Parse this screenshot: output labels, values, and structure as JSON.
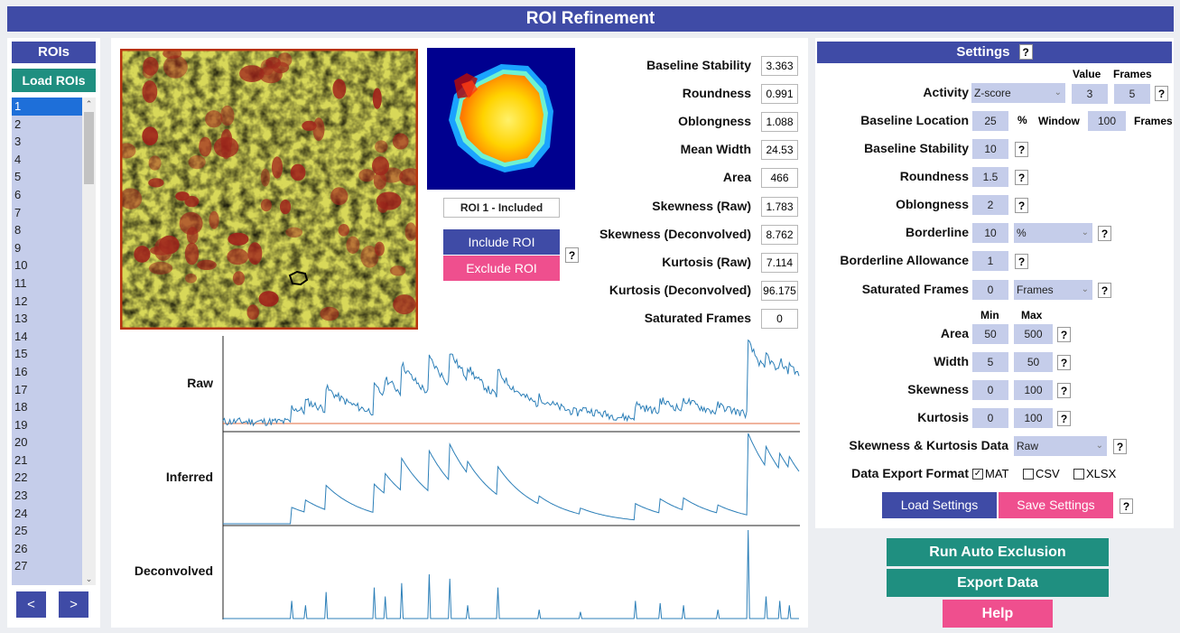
{
  "app": {
    "title": "ROI Refinement"
  },
  "rois_panel": {
    "header": "ROIs",
    "load_button": "Load ROIs",
    "items": [
      "1",
      "2",
      "3",
      "4",
      "5",
      "6",
      "7",
      "8",
      "9",
      "10",
      "11",
      "12",
      "13",
      "14",
      "15",
      "16",
      "17",
      "18",
      "19",
      "20",
      "21",
      "22",
      "23",
      "24",
      "25",
      "26",
      "27"
    ],
    "selected_index": 0,
    "prev_button": "<",
    "next_button": ">"
  },
  "roi_view": {
    "status": "ROI 1 - Included",
    "include_button": "Include ROI",
    "exclude_button": "Exclude ROI",
    "help": "?"
  },
  "metrics": [
    {
      "label": "Baseline Stability",
      "value": "3.363"
    },
    {
      "label": "Roundness",
      "value": "0.991"
    },
    {
      "label": "Oblongness",
      "value": "1.088"
    },
    {
      "label": "Mean Width",
      "value": "24.53"
    },
    {
      "label": "Area",
      "value": "466"
    },
    {
      "label": "Skewness (Raw)",
      "value": "1.783"
    },
    {
      "label": "Skewness (Deconvolved)",
      "value": "8.762"
    },
    {
      "label": "Kurtosis (Raw)",
      "value": "7.114"
    },
    {
      "label": "Kurtosis (Deconvolved)",
      "value": "96.175"
    },
    {
      "label": "Saturated Frames",
      "value": "0"
    }
  ],
  "traces": {
    "raw": "Raw",
    "inferred": "Inferred",
    "deconvolved": "Deconvolved"
  },
  "settings": {
    "header": "Settings",
    "help": "?",
    "col_value": "Value",
    "col_frames": "Frames",
    "activity": {
      "label": "Activity",
      "mode": "Z-score",
      "value": "3",
      "frames": "5"
    },
    "baseline_location": {
      "label": "Baseline Location",
      "value": "25",
      "unit": "%",
      "window_label": "Window",
      "window": "100",
      "frames_label": "Frames"
    },
    "baseline_stability": {
      "label": "Baseline Stability",
      "value": "10"
    },
    "roundness": {
      "label": "Roundness",
      "value": "1.5"
    },
    "oblongness": {
      "label": "Oblongness",
      "value": "2"
    },
    "borderline": {
      "label": "Borderline",
      "value": "10",
      "unit": "%"
    },
    "borderline_allowance": {
      "label": "Borderline Allowance",
      "value": "1"
    },
    "saturated_frames": {
      "label": "Saturated Frames",
      "value": "0",
      "unit": "Frames"
    },
    "col_min": "Min",
    "col_max": "Max",
    "area": {
      "label": "Area",
      "min": "50",
      "max": "500"
    },
    "width": {
      "label": "Width",
      "min": "5",
      "max": "50"
    },
    "skewness": {
      "label": "Skewness",
      "min": "0",
      "max": "100"
    },
    "kurtosis": {
      "label": "Kurtosis",
      "min": "0",
      "max": "100"
    },
    "sk_data": {
      "label": "Skewness & Kurtosis Data",
      "value": "Raw"
    },
    "export_format": {
      "label": "Data Export Format",
      "mat": "MAT",
      "csv": "CSV",
      "xlsx": "XLSX"
    },
    "load_button": "Load Settings",
    "save_button": "Save Settings"
  },
  "actions": {
    "run_auto": "Run Auto Exclusion",
    "export": "Export Data",
    "help": "Help"
  },
  "colors": {
    "primary": "#3f4ba6",
    "teal": "#1f8f80",
    "pink": "#ef4f8e",
    "input": "#c5cdea",
    "trace": "#2c7fb8",
    "baseline": "#e06a3b"
  }
}
